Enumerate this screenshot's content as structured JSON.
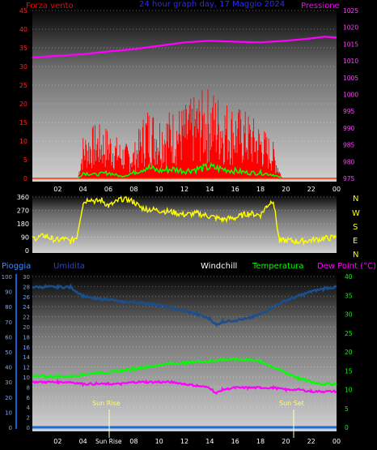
{
  "header": {
    "wind_label": "Forza vento",
    "title": "24 hour graph day, 17 Maggio 2024",
    "pressure_label": "Pressione"
  },
  "bottom_header": {
    "rain_label": "Pioggia",
    "humidity_label": "Umidita",
    "windchill_label": "Windchill",
    "temperature_label": "Temperatura",
    "dewpoint_label": "Dew Point (°C)"
  },
  "annotations": {
    "sunrise": "Sun Rise",
    "sunset": "Sun Set",
    "sunrise_axis": "Sun Rise"
  },
  "compass": [
    "N",
    "W",
    "S",
    "E",
    "N"
  ],
  "colors": {
    "wind": "#ff0000",
    "gust": "#ff0000",
    "wind_avg": "#00ff00",
    "pressure": "#ff00ff",
    "direction": "#ffff00",
    "humidity": "#1a4f8f",
    "temperature": "#00ff00",
    "dewpoint": "#ff00ff",
    "rain": "#1a6fd6",
    "grid": "#ffffff"
  },
  "chart_data": [
    {
      "type": "line",
      "title": "24 hour graph day, 17 Maggio 2024",
      "x_ticks": [
        "02",
        "04",
        "06",
        "08",
        "10",
        "12",
        "14",
        "16",
        "18",
        "20",
        "22",
        "00"
      ],
      "y_left_label": "Forza vento",
      "y_left_ticks": [
        "0",
        "5",
        "10",
        "15",
        "20",
        "25",
        "30",
        "35",
        "40",
        "45"
      ],
      "y_left_range": [
        0,
        45
      ],
      "y_right_label": "Pressione",
      "y_right_ticks": [
        "975",
        "980",
        "985",
        "990",
        "995",
        "1000",
        "1005",
        "1010",
        "1015",
        "1020",
        "1025"
      ],
      "y_right_range": [
        975,
        1025
      ],
      "series": [
        {
          "name": "Pressione",
          "x": [
            0,
            2,
            4,
            6,
            8,
            10,
            12,
            14,
            16,
            18,
            20,
            22,
            23,
            24
          ],
          "values": [
            1011,
            1011.5,
            1012,
            1012.8,
            1013.5,
            1014.5,
            1015.5,
            1016,
            1015.7,
            1015.5,
            1016,
            1016.7,
            1017.2,
            1017.0
          ]
        }
      ],
      "wind_envelope": {
        "x": [
          3.6,
          4,
          5,
          6,
          7,
          8,
          9,
          10,
          11,
          12,
          13,
          14,
          15,
          16,
          17,
          18,
          19,
          19.7
        ],
        "gust": [
          0,
          12,
          15,
          14,
          10,
          9,
          20,
          18,
          19,
          20,
          23,
          25,
          22,
          20,
          18,
          15,
          10,
          0
        ],
        "avg": [
          0,
          1.5,
          1,
          1.5,
          0.5,
          1.5,
          3,
          2,
          2.5,
          2,
          2.5,
          3,
          2.5,
          2,
          1.5,
          1.5,
          1,
          0
        ]
      },
      "grid": true
    },
    {
      "type": "line",
      "y_left_ticks": [
        "0",
        "90",
        "180",
        "270",
        "360"
      ],
      "y_range": [
        0,
        360
      ],
      "series": [
        {
          "name": "direction",
          "x": [
            0,
            0.5,
            1,
            1.5,
            2,
            2.5,
            3,
            3.5,
            4,
            4.5,
            5,
            5.5,
            6,
            6.5,
            7,
            7.5,
            8,
            8.5,
            9,
            10,
            11,
            12,
            13,
            14,
            15,
            16,
            17,
            18,
            18.5,
            19,
            19.5,
            20,
            21,
            22,
            23,
            24
          ],
          "values": [
            80,
            90,
            100,
            80,
            70,
            80,
            60,
            90,
            320,
            350,
            330,
            340,
            300,
            320,
            350,
            340,
            330,
            290,
            280,
            270,
            260,
            240,
            250,
            230,
            210,
            220,
            250,
            240,
            300,
            340,
            60,
            70,
            60,
            70,
            80,
            90
          ]
        }
      ],
      "grid": true
    },
    {
      "type": "line",
      "y_left_label": "Pioggia",
      "y_left_ticks": [
        "0",
        "2",
        "4",
        "6",
        "8",
        "10",
        "12",
        "14",
        "16",
        "18",
        "20",
        "22",
        "24",
        "26",
        "28",
        "30"
      ],
      "y_left_range": [
        0,
        30
      ],
      "y_left2_label": "Umidita",
      "y_left2_ticks": [
        "0",
        "10",
        "20",
        "30",
        "40",
        "50",
        "60",
        "70",
        "80",
        "90",
        "100"
      ],
      "y_left2_range": [
        0,
        100
      ],
      "y_right_label": "Dew Point (°C)",
      "y_right_ticks": [
        "0",
        "5",
        "10",
        "15",
        "20",
        "25",
        "30",
        "35",
        "40"
      ],
      "y_right_range": [
        0,
        40
      ],
      "series": [
        {
          "name": "Umidita",
          "x": [
            0,
            1,
            2,
            3,
            4,
            5,
            6,
            7,
            8,
            9,
            10,
            11,
            12,
            13,
            14,
            14.5,
            15,
            16,
            17,
            18,
            19,
            20,
            21,
            22,
            23,
            24
          ],
          "values": [
            93,
            93,
            93,
            93,
            87,
            85,
            85,
            83,
            83,
            82,
            81,
            79,
            77,
            75,
            72,
            68,
            70,
            71,
            72,
            75,
            80,
            84,
            87,
            90,
            92,
            93
          ]
        },
        {
          "name": "Temperatura",
          "x": [
            0,
            1,
            2,
            3,
            4,
            5,
            6,
            7,
            8,
            9,
            10,
            11,
            12,
            13,
            14,
            15,
            16,
            17,
            18,
            19,
            20,
            21,
            22,
            23,
            24
          ],
          "values": [
            13.5,
            13.5,
            13.5,
            13.5,
            14,
            14.5,
            14.5,
            15,
            15.5,
            16,
            16.5,
            17,
            17,
            17.5,
            17.5,
            18,
            18,
            18,
            17.5,
            16,
            14.5,
            13,
            12,
            11.5,
            11.5
          ]
        },
        {
          "name": "Dew Point (°C)",
          "x": [
            0,
            1,
            2,
            3,
            4,
            5,
            6,
            7,
            8,
            9,
            10,
            11,
            12,
            13,
            14,
            14.5,
            15,
            16,
            17,
            18,
            19,
            20,
            21,
            22,
            23,
            24
          ],
          "values": [
            12,
            12,
            12,
            12,
            11.5,
            11.5,
            11.5,
            11.5,
            12,
            12,
            12,
            12,
            11.5,
            11,
            10.5,
            9,
            10,
            10.5,
            10.5,
            10.5,
            10.5,
            10,
            10,
            9.5,
            9.5,
            9.5
          ]
        },
        {
          "name": "Pioggia",
          "x": [
            0,
            24
          ],
          "values": [
            0,
            0
          ]
        }
      ],
      "grid": true
    }
  ]
}
